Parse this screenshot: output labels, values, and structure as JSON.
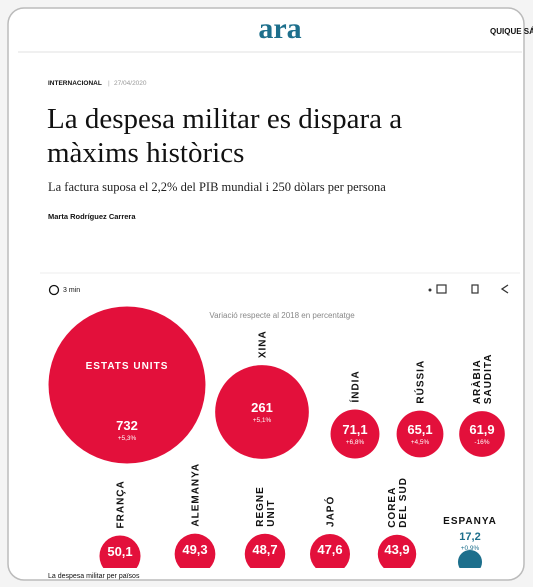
{
  "header": {
    "logo": "ara",
    "user": "QUIQUE SÁ"
  },
  "article": {
    "section": "INTERNACIONAL",
    "date": "27/04/2020",
    "title_lines": [
      "La despesa militar es dispara a",
      "màxims històrics"
    ],
    "subtitle": "La factura suposa el 2,2% del PIB mundial i 250 dòlars per persona",
    "author": "Marta Rodríguez Carrera",
    "read_time": "3 min"
  },
  "chart": {
    "note": "Variació respecte al 2018 en percentatge",
    "caption": "La despesa militar per països",
    "items": [
      {
        "name_lines": [
          "ESTATS UNITS"
        ],
        "value": 732,
        "value_label": "732",
        "change": "+5,3%"
      },
      {
        "name_lines": [
          "XINA"
        ],
        "value": 261,
        "value_label": "261",
        "change": "+5,1%"
      },
      {
        "name_lines": [
          "ÍNDIA"
        ],
        "value": 71.1,
        "value_label": "71,1",
        "change": "+6,8%"
      },
      {
        "name_lines": [
          "RÚSSIA"
        ],
        "value": 65.1,
        "value_label": "65,1",
        "change": "+4,5%"
      },
      {
        "name_lines": [
          "ARÀBIA",
          "SAUDITA"
        ],
        "value": 61.9,
        "value_label": "61,9",
        "change": "-16%"
      },
      {
        "name_lines": [
          "FRANÇA"
        ],
        "value": 50.1,
        "value_label": "50,1"
      },
      {
        "name_lines": [
          "ALEMANYA"
        ],
        "value": 49.3,
        "value_label": "49,3"
      },
      {
        "name_lines": [
          "REGNE",
          "UNIT"
        ],
        "value": 48.7,
        "value_label": "48,7"
      },
      {
        "name_lines": [
          "JAPÓ"
        ],
        "value": 47.6,
        "value_label": "47,6"
      },
      {
        "name_lines": [
          "COREA",
          "DEL SUD"
        ],
        "value": 43.9,
        "value_label": "43,9"
      },
      {
        "name_lines": [
          "ESPANYA"
        ],
        "value": 17.2,
        "value_label": "17,2",
        "change": "+0,9%"
      }
    ]
  }
}
